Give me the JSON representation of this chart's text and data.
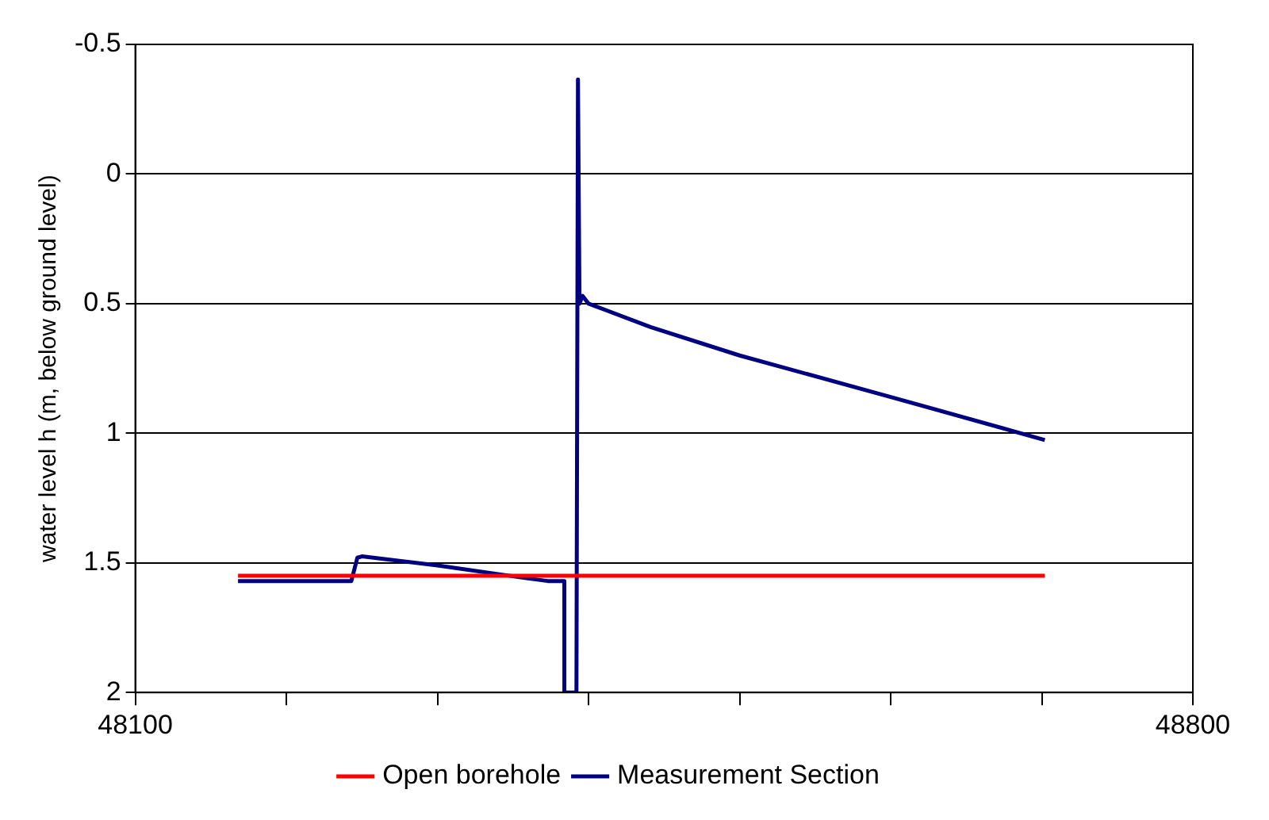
{
  "chart_data": {
    "type": "line",
    "ylabel": "water level h (m, below ground level)",
    "xlim": [
      48100,
      48800
    ],
    "xticks": [
      48100,
      {
        "value": 48200,
        "label": null
      },
      {
        "value": 48300,
        "label": null
      },
      {
        "value": 48400,
        "label": null
      },
      {
        "value": 48500,
        "label": null
      },
      {
        "value": 48600,
        "label": null
      },
      {
        "value": 48700,
        "label": null
      },
      48800
    ],
    "ylim": [
      2,
      -0.5
    ],
    "yticks": [
      -0.5,
      0,
      0.5,
      1,
      1.5,
      2
    ],
    "grid": "y",
    "legend": "bottom",
    "marker": "none",
    "line_style": "solid",
    "series": [
      {
        "name": "Open borehole",
        "color": "#ff0000",
        "x": [
          48168,
          48702
        ],
        "values": [
          1.55,
          1.55
        ]
      },
      {
        "name": "Measurement Section",
        "color": "#000080",
        "x": [
          48168,
          48243,
          48247,
          48250,
          48300,
          48360,
          48373,
          48384,
          48384,
          48392,
          48393,
          48394,
          48396,
          48400,
          48441,
          48500,
          48600,
          48702
        ],
        "values": [
          1.57,
          1.57,
          1.48,
          1.475,
          1.51,
          1.56,
          1.57,
          1.57,
          2,
          2,
          -0.365,
          0.5,
          0.47,
          0.5,
          0.59,
          0.7,
          0.86,
          1.026
        ]
      }
    ]
  }
}
